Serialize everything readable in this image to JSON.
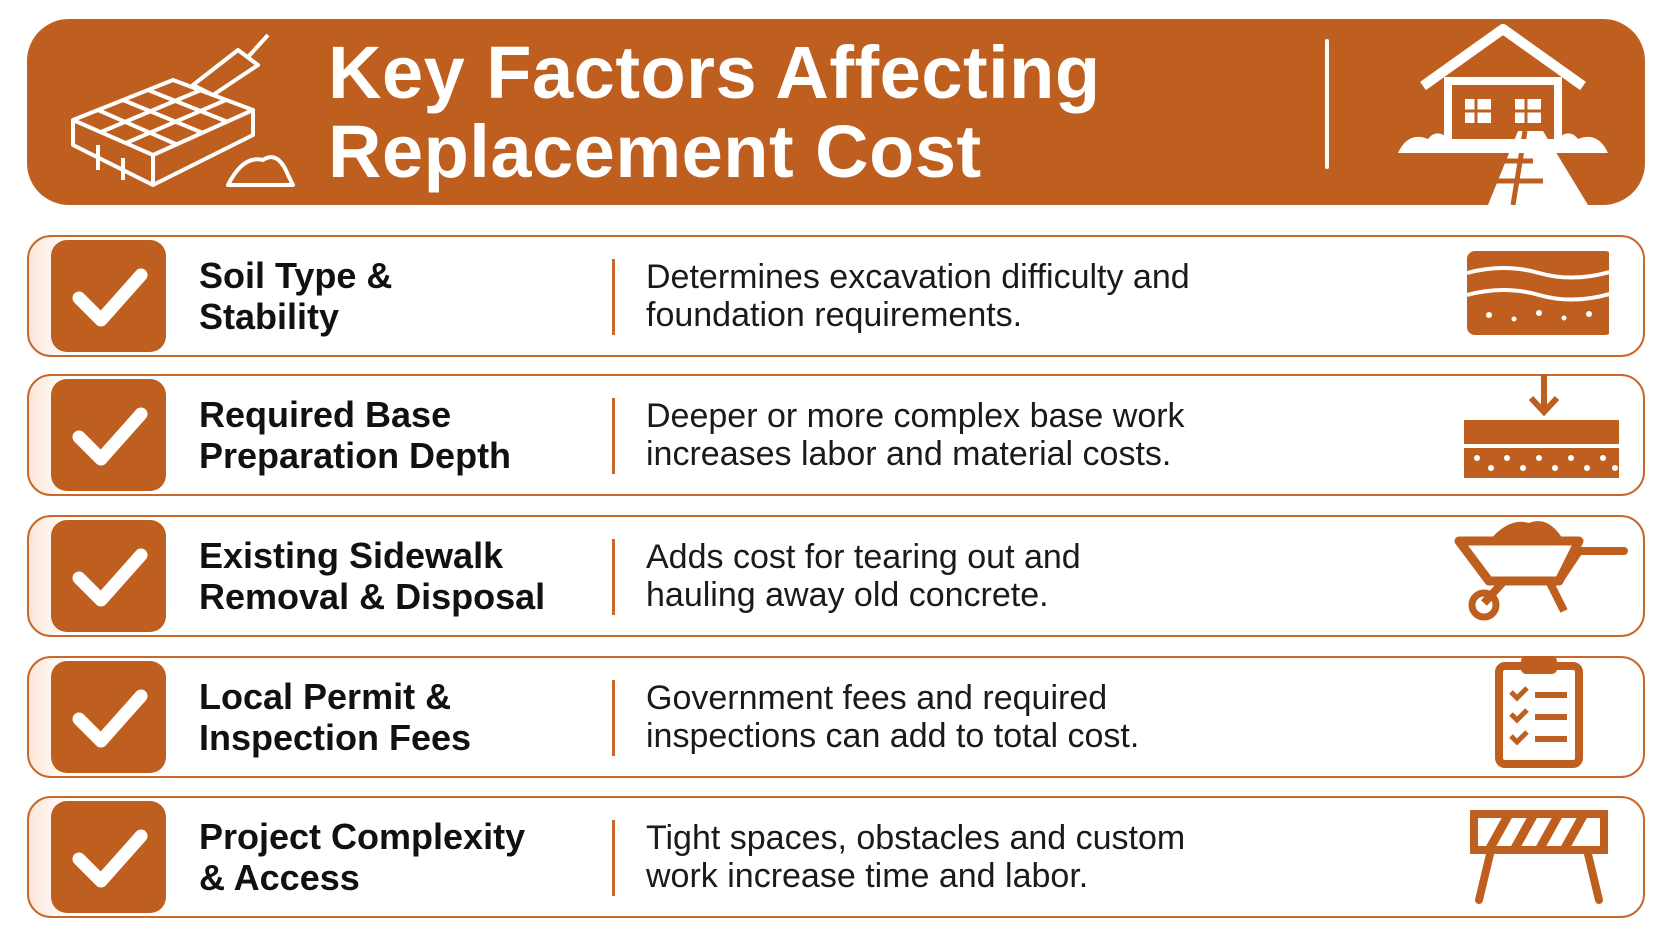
{
  "header": {
    "title_lines": [
      "Key Factors Affecting",
      "Replacement Cost"
    ]
  },
  "factors": [
    {
      "name_lines": [
        "Soil Type &",
        "Stability"
      ],
      "description_lines": [
        "Determines excavation difficulty and",
        "foundation requirements."
      ]
    },
    {
      "name_lines": [
        "Required Base",
        "Preparation Depth"
      ],
      "description_lines": [
        "Deeper or more complex base work",
        "increases labor and material costs."
      ]
    },
    {
      "name_lines": [
        "Existing Sidewalk",
        "Removal & Disposal"
      ],
      "description_lines": [
        "Adds cost for tearing out and",
        "hauling away old concrete."
      ]
    },
    {
      "name_lines": [
        "Local Permit &",
        "Inspection Fees"
      ],
      "description_lines": [
        "Government fees and required",
        "inspections can add to total cost."
      ]
    },
    {
      "name_lines": [
        "Project Complexity",
        "& Access"
      ],
      "description_lines": [
        "Tight spaces, obstacles and custom",
        "work increase time and labor."
      ]
    }
  ]
}
